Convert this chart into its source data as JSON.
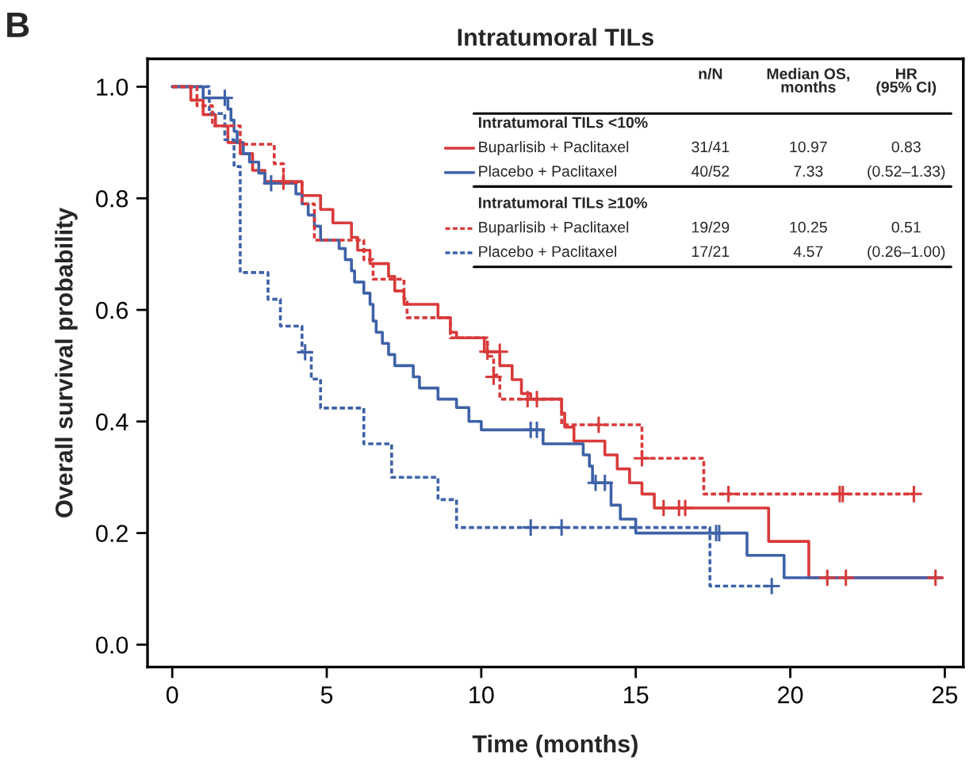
{
  "chart_data": {
    "type": "step",
    "title": "Intratumoral TILs",
    "xlabel": "Time (months)",
    "ylabel": "Overall survival probability",
    "xlim": [
      -0.8,
      25.6
    ],
    "ylim": [
      -0.04,
      1.05
    ],
    "xticks": [
      0,
      5,
      10,
      15,
      20,
      25
    ],
    "yticks": [
      {
        "value": 0,
        "label": "0.0"
      },
      0.2,
      0.4,
      0.6,
      0.8,
      {
        "value": 1,
        "label": "1.0"
      }
    ],
    "grid": false,
    "legend": "top right",
    "annotations": [
      "B",
      "n/N",
      "Median OS,\nmonths",
      "HR\n(95% CI)",
      "Intratumoral TILs <10%",
      "31/41",
      "10.97",
      "0.83",
      "40/52",
      "7.33",
      "(0.52–1.33)",
      "Intratumoral TILs ≥10%",
      "19/29",
      "10.25",
      "0.51",
      "17/21",
      "4.57",
      "(0.26–1.00)"
    ],
    "series": [
      {
        "name": "Buparlisib + Paclitaxel",
        "color": "#d93a3a",
        "line_style": "solid",
        "x": [
          0,
          0.6,
          1.0,
          1.4,
          1.8,
          2.2,
          2.6,
          3.0,
          4.2,
          4.8,
          5.2,
          5.8,
          6.0,
          6.4,
          7.0,
          7.2,
          7.5,
          8.6,
          9.0,
          9.2,
          10.1,
          10.6,
          11.0,
          11.3,
          11.6,
          12.6,
          12.7,
          13.0,
          14.0,
          14.4,
          14.8,
          15.2,
          15.6,
          19.3,
          20.6,
          24.9
        ],
        "values": [
          1.0,
          0.976,
          0.95,
          0.93,
          0.9,
          0.88,
          0.85,
          0.83,
          0.805,
          0.78,
          0.756,
          0.73,
          0.707,
          0.683,
          0.66,
          0.634,
          0.61,
          0.586,
          0.56,
          0.55,
          0.525,
          0.5,
          0.475,
          0.45,
          0.44,
          0.415,
          0.39,
          0.365,
          0.34,
          0.315,
          0.29,
          0.27,
          0.245,
          0.185,
          0.12,
          0.12
        ]
      },
      {
        "name": "Placebo + Paclitaxel",
        "color": "#3e62a8",
        "line_style": "solid",
        "x": [
          0,
          1.0,
          1.8,
          1.9,
          2.0,
          2.1,
          2.3,
          2.5,
          2.8,
          3.0,
          4.0,
          4.2,
          4.4,
          4.6,
          4.8,
          5.4,
          5.6,
          5.8,
          5.9,
          6.2,
          6.4,
          6.5,
          6.6,
          6.8,
          7.0,
          7.2,
          7.8,
          8.0,
          8.6,
          9.2,
          9.6,
          10.0,
          12.0,
          13.3,
          13.5,
          13.6,
          14.2,
          14.5,
          15.0,
          18.6,
          19.8,
          24.9
        ],
        "values": [
          1.0,
          0.98,
          0.96,
          0.94,
          0.92,
          0.9,
          0.88,
          0.865,
          0.845,
          0.827,
          0.808,
          0.79,
          0.77,
          0.75,
          0.725,
          0.71,
          0.69,
          0.67,
          0.65,
          0.63,
          0.61,
          0.58,
          0.56,
          0.54,
          0.52,
          0.5,
          0.48,
          0.46,
          0.44,
          0.425,
          0.4,
          0.385,
          0.36,
          0.34,
          0.32,
          0.29,
          0.25,
          0.225,
          0.2,
          0.16,
          0.12,
          0.12
        ]
      },
      {
        "name": "Buparlisib + Paclitaxel",
        "color": "#d93a3a",
        "line_style": "dashed",
        "x": [
          0,
          0.8,
          1.3,
          2.2,
          3.3,
          3.6,
          4.2,
          4.6,
          6.2,
          6.5,
          7.5,
          7.6,
          9.0,
          10.2,
          10.4,
          10.6,
          12.6,
          15.2,
          17.2,
          24.0
        ],
        "values": [
          1.0,
          0.966,
          0.93,
          0.897,
          0.862,
          0.828,
          0.79,
          0.725,
          0.69,
          0.655,
          0.62,
          0.586,
          0.55,
          0.517,
          0.483,
          0.44,
          0.394,
          0.334,
          0.27,
          0.27
        ]
      },
      {
        "name": "Placebo + Paclitaxel",
        "color": "#3e62a8",
        "line_style": "dashed",
        "x": [
          0,
          1.2,
          1.7,
          2.0,
          2.2,
          3.1,
          3.5,
          4.2,
          4.5,
          4.8,
          6.2,
          7.1,
          8.6,
          9.2,
          17.4,
          19.4
        ],
        "values": [
          1.0,
          0.952,
          0.905,
          0.857,
          0.667,
          0.619,
          0.571,
          0.524,
          0.476,
          0.424,
          0.36,
          0.3,
          0.26,
          0.21,
          0.105,
          0.105
        ]
      },
      {
        "type": "scatter",
        "marker": "cross",
        "color": "#d93a3a",
        "x": [
          3.6,
          10.2,
          10.6,
          11.8,
          15.9,
          16.4,
          16.6,
          21.2,
          21.8,
          24.7
        ],
        "values": [
          0.83,
          0.525,
          0.525,
          0.44,
          0.245,
          0.245,
          0.245,
          0.12,
          0.12,
          0.12
        ]
      },
      {
        "type": "scatter",
        "marker": "cross",
        "color": "#3e62a8",
        "x": [
          1.7,
          3.2,
          11.6,
          11.8,
          13.7,
          14.0,
          17.6,
          17.7
        ],
        "values": [
          0.98,
          0.827,
          0.385,
          0.385,
          0.29,
          0.29,
          0.2,
          0.2
        ]
      },
      {
        "type": "scatter",
        "marker": "cross",
        "color": "#d93a3a",
        "x": [
          10.4,
          11.5,
          13.8,
          15.2,
          18.0,
          21.6,
          21.7,
          24.0
        ],
        "values": [
          0.48,
          0.44,
          0.394,
          0.334,
          0.27,
          0.27,
          0.27,
          0.27
        ]
      },
      {
        "type": "scatter",
        "marker": "cross",
        "color": "#3e62a8",
        "x": [
          4.3,
          11.6,
          12.6,
          19.4
        ],
        "values": [
          0.524,
          0.21,
          0.21,
          0.105
        ]
      }
    ]
  }
}
